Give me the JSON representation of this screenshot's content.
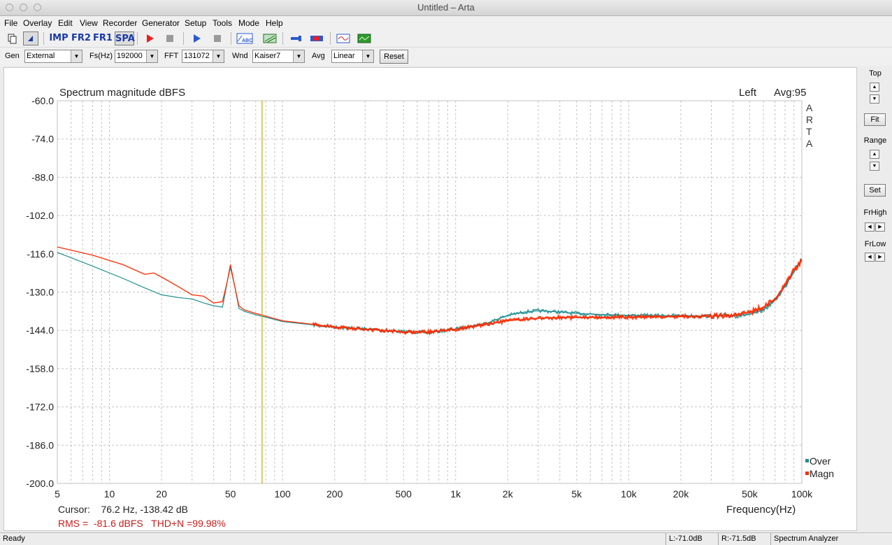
{
  "window": {
    "title": "Untitled – Arta"
  },
  "menu": [
    "File",
    "Overlay",
    "Edit",
    "View",
    "Recorder",
    "Generator",
    "Setup",
    "Tools",
    "Mode",
    "Help"
  ],
  "toolbar": {
    "imp_label": "IMP",
    "fr2_label": "FR2",
    "fr1_label": "FR1",
    "spa_label": "SPA"
  },
  "controls": {
    "gen_label": "Gen",
    "gen_value": "External",
    "fs_label": "Fs(Hz)",
    "fs_value": "192000",
    "fft_label": "FFT",
    "fft_value": "131072",
    "wnd_label": "Wnd",
    "wnd_value": "Kaiser7",
    "avg_label": "Avg",
    "avg_value": "Linear",
    "reset_label": "Reset"
  },
  "plot": {
    "title": "Spectrum magnitude dBFS",
    "channel": "Left",
    "avg": "Avg:95",
    "watermark": [
      "A",
      "R",
      "T",
      "A"
    ],
    "cursor_text": "Cursor:    76.2 Hz, -138.42 dB",
    "rms_text": "RMS =  -81.6 dBFS   THD+N =99.98%",
    "colors": {
      "over": "#1f8f8f",
      "magn": "#ff2a00",
      "cursor": "#c8a800",
      "rms_text": "#cc1a1a"
    }
  },
  "chart_data": {
    "type": "line",
    "title": "Spectrum magnitude dBFS",
    "xlabel": "Frequency(Hz)",
    "ylabel": "",
    "x_scale": "log",
    "xlim": [
      5,
      100000
    ],
    "ylim": [
      -200,
      -60
    ],
    "y_ticks": [
      "-60.0",
      "-74.0",
      "-88.0",
      "-102.0",
      "-116.0",
      "-130.0",
      "-144.0",
      "-158.0",
      "-172.0",
      "-186.0",
      "-200.0"
    ],
    "y_tick_values": [
      -60,
      -74,
      -88,
      -102,
      -116,
      -130,
      -144,
      -158,
      -172,
      -186,
      -200
    ],
    "x_ticks": [
      "5",
      "10",
      "20",
      "50",
      "100",
      "200",
      "500",
      "1k",
      "2k",
      "5k",
      "10k",
      "20k",
      "50k",
      "100k"
    ],
    "x_tick_values": [
      5,
      10,
      20,
      50,
      100,
      200,
      500,
      1000,
      2000,
      5000,
      10000,
      20000,
      50000,
      100000
    ],
    "grid": true,
    "legend_position": "bottom-right",
    "cursor_hz": 76.2,
    "series": [
      {
        "name": "Over",
        "x": [
          5,
          8,
          12,
          16,
          20,
          25,
          30,
          35,
          40,
          45,
          48,
          50,
          53,
          56,
          60,
          70,
          80,
          100,
          150,
          200,
          300,
          500,
          700,
          1000,
          1500,
          2000,
          2500,
          3000,
          4000,
          5000,
          7000,
          10000,
          15000,
          20000,
          30000,
          40000,
          50000,
          60000,
          70000,
          80000,
          90000,
          100000
        ],
        "y": [
          -115.5,
          -120.5,
          -125,
          -128.5,
          -131,
          -132,
          -132.5,
          -134,
          -135,
          -135.5,
          -126,
          -121,
          -128,
          -136,
          -137,
          -138.3,
          -139.2,
          -140.8,
          -142,
          -142.8,
          -143.5,
          -144.5,
          -144.8,
          -143.5,
          -141.5,
          -138.5,
          -137.3,
          -136.8,
          -137.3,
          -137.8,
          -138.2,
          -138.5,
          -138.6,
          -138.6,
          -138.8,
          -138.7,
          -138.2,
          -136.5,
          -133,
          -128,
          -122,
          -118
        ]
      },
      {
        "name": "Magn",
        "x": [
          5,
          8,
          12,
          16,
          18,
          20,
          25,
          30,
          35,
          40,
          45,
          48,
          50,
          53,
          56,
          60,
          70,
          80,
          100,
          150,
          200,
          300,
          500,
          700,
          1000,
          1500,
          2000,
          2500,
          3000,
          4000,
          5000,
          7000,
          10000,
          15000,
          20000,
          30000,
          40000,
          50000,
          60000,
          70000,
          80000,
          90000,
          100000
        ],
        "y": [
          -113.5,
          -116.5,
          -120,
          -123.5,
          -123,
          -124.5,
          -128,
          -131,
          -131.5,
          -134,
          -133.5,
          -126,
          -120,
          -128,
          -135,
          -136.5,
          -137.8,
          -138.8,
          -140.5,
          -141.8,
          -142.8,
          -143.6,
          -144.6,
          -144.6,
          -143.6,
          -141.8,
          -140.5,
          -140,
          -139.6,
          -139.3,
          -139.3,
          -139.2,
          -139.2,
          -139,
          -139,
          -138.8,
          -138.5,
          -137.5,
          -135.5,
          -132.5,
          -127.5,
          -122,
          -118.5
        ]
      }
    ]
  },
  "right_panel": {
    "top_label": "Top",
    "fit_label": "Fit",
    "range_label": "Range",
    "set_label": "Set",
    "frhigh_label": "FrHigh",
    "frlow_label": "FrLow"
  },
  "status": {
    "ready": "Ready",
    "left_level": "L:-71.0dB",
    "right_level": "R:-71.5dB",
    "mode": "Spectrum Analyzer"
  }
}
